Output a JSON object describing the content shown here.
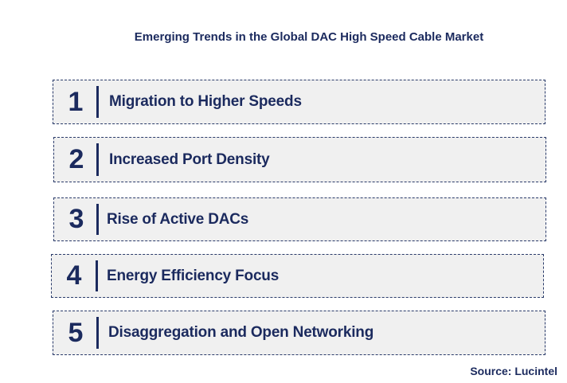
{
  "title": "Emerging Trends in the Global DAC High Speed Cable Market",
  "trends": [
    {
      "number": "1",
      "label": "Migration to Higher Speeds"
    },
    {
      "number": "2",
      "label": "Increased Port Density"
    },
    {
      "number": "3",
      "label": "Rise of Active DACs"
    },
    {
      "number": "4",
      "label": "Energy Efficiency Focus"
    },
    {
      "number": "5",
      "label": "Disaggregation and Open Networking"
    }
  ],
  "source": "Source: Lucintel",
  "colors": {
    "text": "#1b2a5e",
    "box_fill": "#f0f0f0",
    "box_border": "#2a3b6a"
  }
}
